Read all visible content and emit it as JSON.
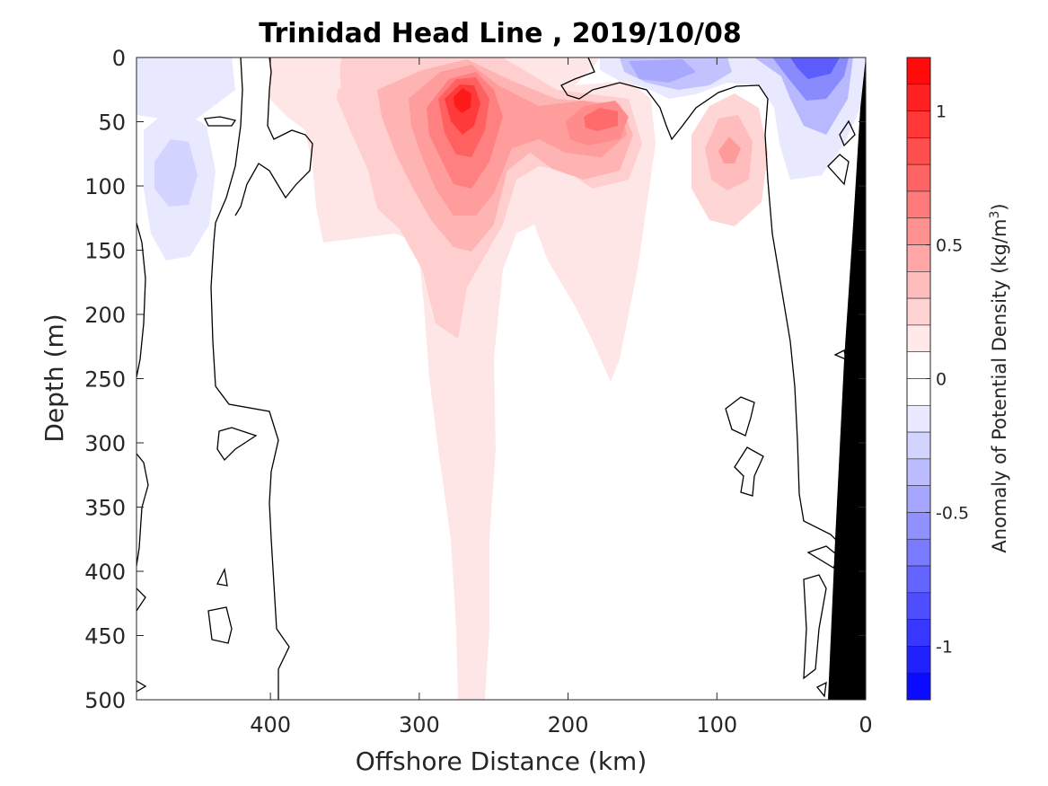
{
  "chart_data": {
    "type": "heatmap",
    "subtype": "filled-contour-section",
    "title": "Trinidad Head Line , 2019/10/08",
    "xlabel": "Offshore Distance (km)",
    "ylabel": "Depth (m)",
    "xlim": [
      490,
      0
    ],
    "ylim": [
      0,
      500
    ],
    "x_reversed": true,
    "y_reversed": true,
    "xticks": [
      400,
      300,
      200,
      100,
      0
    ],
    "yticks": [
      0,
      50,
      100,
      150,
      200,
      250,
      300,
      350,
      400,
      450,
      500
    ],
    "colorbar": {
      "label": "Anomaly of Potential Density (kg/m",
      "label_sup": "3",
      "label_end": ")",
      "range": [
        -1.2,
        1.2
      ],
      "step": 0.1,
      "ticks": [
        1,
        0.5,
        0,
        -0.5,
        -1
      ],
      "tick_labels": [
        "1",
        "0.5",
        "0",
        "-0.5",
        "-1"
      ],
      "min_color": "#0000ff",
      "max_color": "#ff0000",
      "mid_color": "#ffffff"
    },
    "anomaly_features": [
      {
        "x": 270,
        "y": 35,
        "value": 1.15
      },
      {
        "x": 270,
        "y": 110,
        "value": 0.6
      },
      {
        "x": 265,
        "y": 200,
        "value": 0.35
      },
      {
        "x": 180,
        "y": 45,
        "value": 0.7
      },
      {
        "x": 190,
        "y": 140,
        "value": 0.3
      },
      {
        "x": 90,
        "y": 70,
        "value": 0.45
      },
      {
        "x": 135,
        "y": 12,
        "value": -0.5
      },
      {
        "x": 35,
        "y": 10,
        "value": -0.9
      },
      {
        "x": 465,
        "y": 90,
        "value": -0.3
      }
    ],
    "bathymetry_color": "#000000",
    "grid": false
  }
}
